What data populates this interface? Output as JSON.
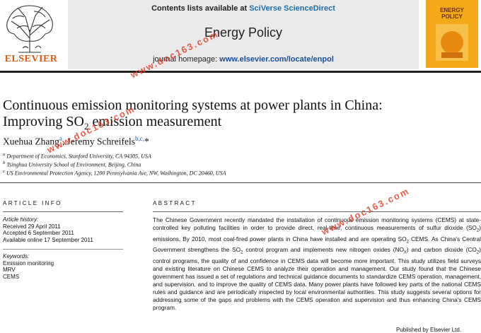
{
  "header": {
    "publisher": "ELSEVIER",
    "contents_prefix": "Contents lists available at ",
    "contents_link": "SciVerse ScienceDirect",
    "journal_title": "Energy Policy",
    "homepage_prefix": "journal homepage: ",
    "homepage_url": "www.elsevier.com/locate/enpol",
    "cover_title_line1": "ENERGY",
    "cover_title_line2": "POLICY"
  },
  "article": {
    "title_line1": "Continuous emission monitoring systems at power plants in China:",
    "title_line2_prefix": "Improving SO",
    "title_line2_sub": "2",
    "title_line2_suffix": " emission measurement",
    "author1": "Xuehua Zhang",
    "author1_sup": "a",
    "author_sep": ", ",
    "author2": "Jeremy Schreifels",
    "author2_sup": "b,c,",
    "author2_star": "*",
    "affiliations": [
      {
        "mark": "a",
        "text": " Department of Economics, Stanford University, CA 94305, USA"
      },
      {
        "mark": "b",
        "text": " Tsinghua University School of Environment, Beijing, China"
      },
      {
        "mark": "c",
        "text": " US Environmental Protection Agency, 1200 Pennsylvania Ave, NW, Washington, DC 20460, USA"
      }
    ]
  },
  "article_info": {
    "heading": "ARTICLE INFO",
    "history_label": "Article history:",
    "received": "Received 29 April 2011",
    "accepted": "Accepted 6 September 2011",
    "online": "Available online 17 September 2011",
    "keywords_label": "Keywords:",
    "keywords": [
      "Emission monitoring",
      "MRV",
      "CEMS"
    ]
  },
  "abstract": {
    "heading": "ABSTRACT",
    "p1": "The Chinese Government recently mandated the installation of continuous emission monitoring systems (CEMS) at state-controlled key polluting facilities in order to provide direct, real-time, continuous measurements of sulfur dioxide (SO",
    "p2": ") emissions. By 2010, most coal-fired power plants in China have installed and are operating SO",
    "p3": " CEMS. As China's Central Government strengthens the SO",
    "p4": " control program and implements new nitrogen oxides (NO",
    "p5": ") and carbon dioxide (CO",
    "p6": ") control programs, the quality of and confidence in CEMS data will become more important. This study utilizes field surveys and existing literature on Chinese CEMS to analyze their operation and management. Our study found that the Chinese government has issued a set of regulations and technical guidance documents to standardize CEMS operation, management, and supervision, and to improve the quality of CEMS data. Many power plants have followed key parts of the national CEMS rules and guidance and are periodically inspected by local environmental authorities. This study suggests several options for addressing some of the gaps and problems with the CEMS operation and supervision and thus enhancing China's CEMS program.",
    "sub2": "2",
    "subx": "X",
    "published_by": "Published by Elsevier Ltd."
  },
  "watermark": {
    "text": "www.doc163.com"
  }
}
